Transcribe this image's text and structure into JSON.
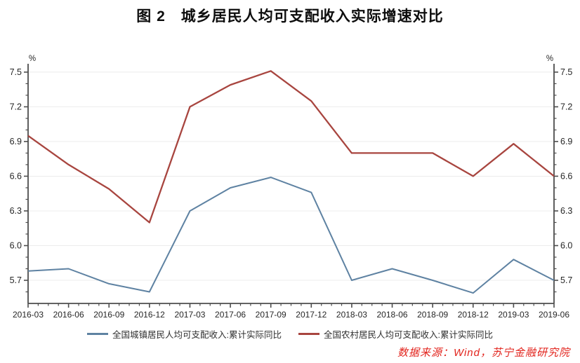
{
  "title": "图 2　城乡居民人均可支配收入实际增速对比",
  "source_note": "数据来源：Wind，苏宁金融研究院",
  "colors": {
    "urban_series": "#5E82A2",
    "rural_series": "#A8453F",
    "source_note": "#E2241D",
    "grid": "#ECECEC",
    "axis": "#4D4D4D",
    "tick_label": "#262626",
    "legend_text": "#303030",
    "background": "#FFFFFF"
  },
  "chart_data": {
    "type": "line",
    "title": "图 2　城乡居民人均可支配收入实际增速对比",
    "xlabel": "",
    "ylabel": "%",
    "categories": [
      "2016-03",
      "2016-06",
      "2016-09",
      "2016-12",
      "2017-03",
      "2017-06",
      "2017-09",
      "2017-12",
      "2018-03",
      "2018-06",
      "2018-09",
      "2018-12",
      "2019-03",
      "2019-06"
    ],
    "series": [
      {
        "name": "全国城镇居民人均可支配收入:累计实际同比",
        "color": "#5E82A2",
        "values": [
          5.78,
          5.8,
          5.67,
          5.6,
          6.3,
          6.5,
          6.59,
          6.46,
          5.7,
          5.8,
          5.7,
          5.59,
          5.88,
          5.7
        ]
      },
      {
        "name": "全国农村居民人均可支配收入:累计实际同比",
        "color": "#A8453F",
        "values": [
          6.95,
          6.7,
          6.49,
          6.2,
          7.2,
          7.39,
          7.51,
          7.25,
          6.8,
          6.8,
          6.8,
          6.6,
          6.88,
          6.6
        ]
      }
    ],
    "ylim": [
      5.5,
      7.56
    ],
    "yticks_major": [
      5.7,
      6.0,
      6.3,
      6.6,
      6.9,
      7.2,
      7.5
    ],
    "y_minor_step": 0.1,
    "x_minor_divisions": 4,
    "grid": "horizontal-major-only",
    "dual_y_axis": true,
    "legend_position": "bottom-center"
  }
}
